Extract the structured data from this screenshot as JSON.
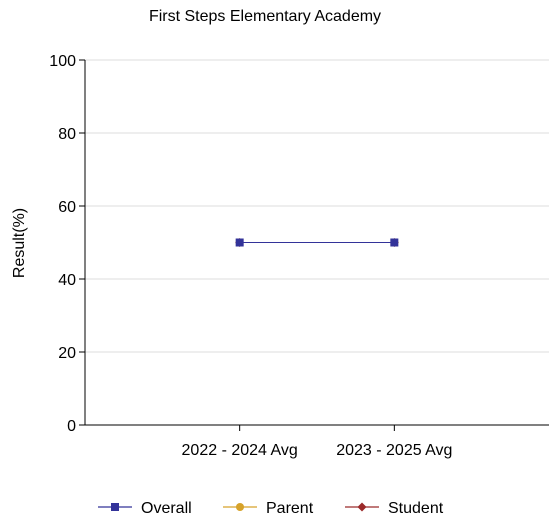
{
  "chart_data": {
    "type": "line",
    "title": "First Steps Elementary Academy",
    "xlabel": "",
    "ylabel": "Result(%)",
    "categories": [
      "2022 - 2024 Avg",
      "2023 - 2025 Avg"
    ],
    "ylim": [
      0,
      100
    ],
    "yticks": [
      0,
      20,
      40,
      60,
      80,
      100
    ],
    "grid": true,
    "legend_position": "bottom",
    "series": [
      {
        "name": "Overall",
        "values": [
          50,
          50
        ],
        "color": "#333399",
        "marker": "square"
      },
      {
        "name": "Parent",
        "values": [
          50,
          50
        ],
        "color": "#D6A22A",
        "marker": "circle"
      },
      {
        "name": "Student",
        "values": [
          50,
          50
        ],
        "color": "#9B2A2A",
        "marker": "diamond"
      }
    ]
  }
}
